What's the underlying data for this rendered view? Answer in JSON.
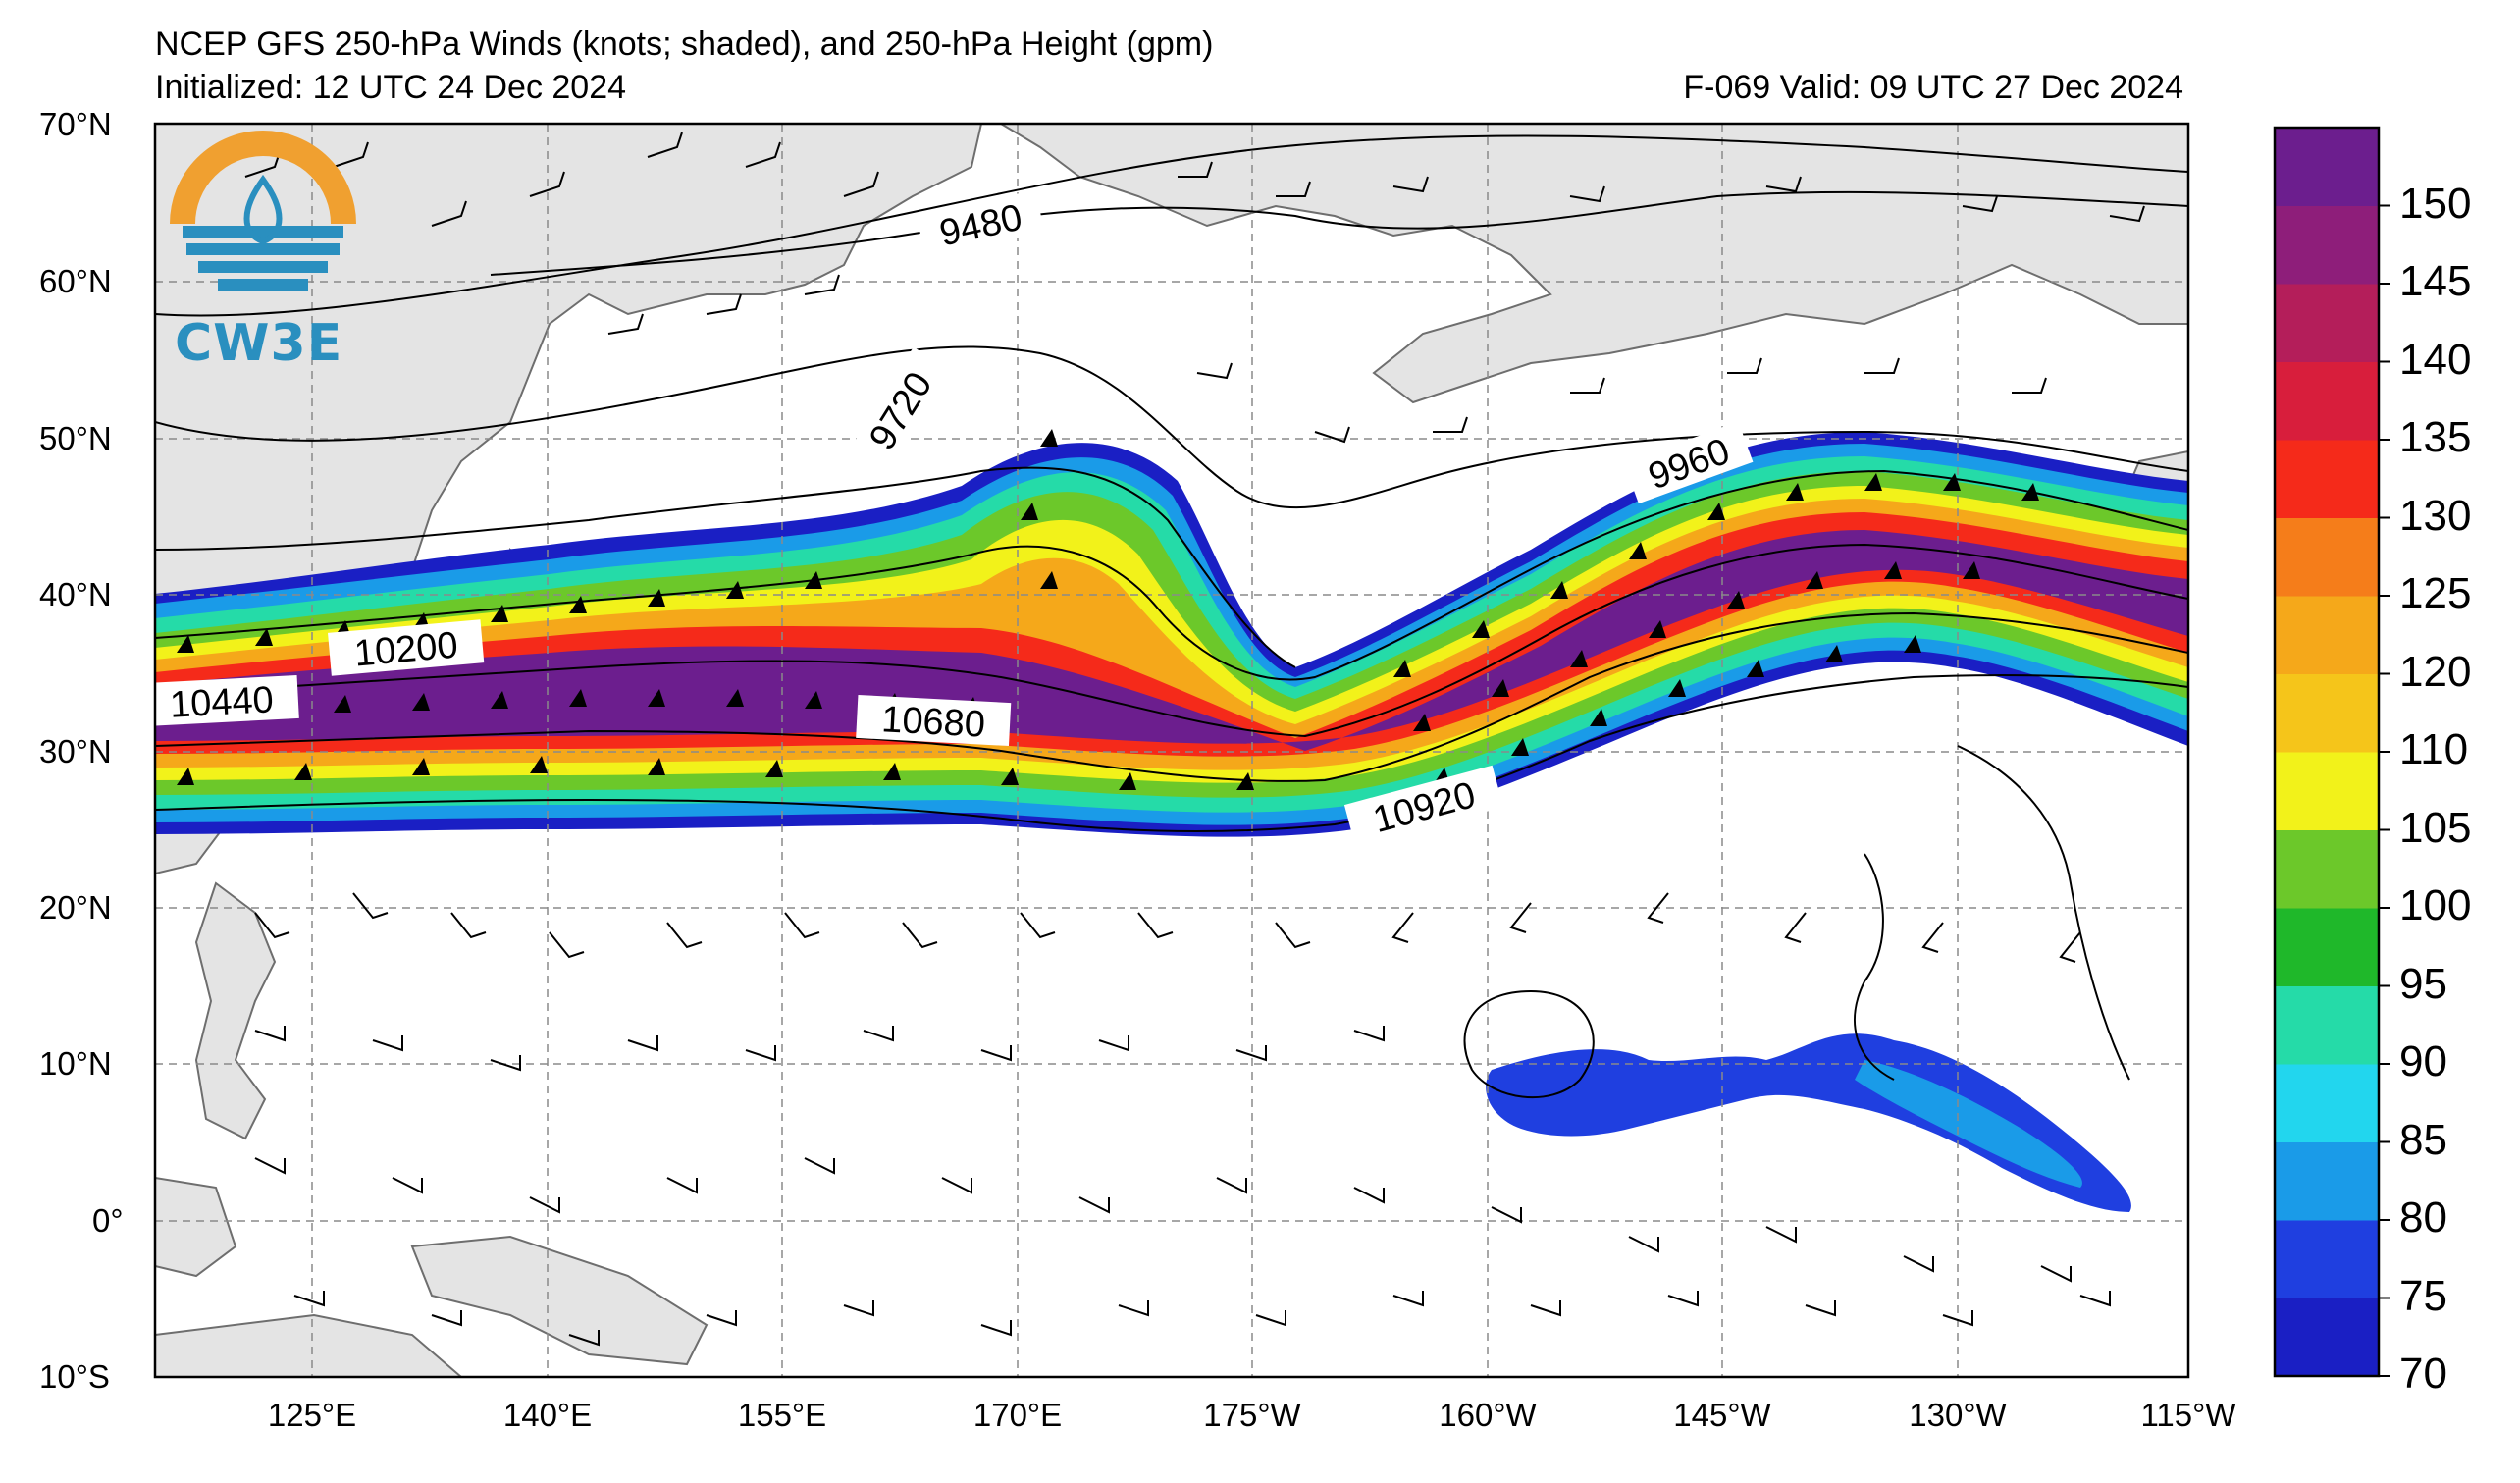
{
  "titles": {
    "line1": "NCEP GFS 250-hPa Winds (knots; shaded), and 250-hPa Height (gpm)",
    "line2": "Initialized: 12 UTC 24 Dec 2024",
    "valid": "F-069  Valid: 09 UTC 27 Dec 2024"
  },
  "logo": {
    "text": "CW3E",
    "icon": "cw3e-logo-icon"
  },
  "axes": {
    "lat_labels": [
      "70°N",
      "60°N",
      "50°N",
      "40°N",
      "30°N",
      "20°N",
      "10°N",
      "0°",
      "10°S"
    ],
    "lon_labels": [
      "125°E",
      "140°E",
      "155°E",
      "170°E",
      "175°W",
      "160°W",
      "145°W",
      "130°W",
      "115°W"
    ]
  },
  "colorbar": {
    "levels": [
      70,
      75,
      80,
      85,
      90,
      95,
      100,
      105,
      110,
      120,
      125,
      130,
      135,
      140,
      145,
      150
    ],
    "tick_labels": [
      "150",
      "145",
      "140",
      "135",
      "130",
      "125",
      "120",
      "110",
      "105",
      "100",
      "95",
      "90",
      "85",
      "80",
      "75",
      "70"
    ],
    "colors": [
      "#1a1fc4",
      "#1f3fe0",
      "#1a9be8",
      "#22d6ee",
      "#25dba8",
      "#1fb82a",
      "#6cc82a",
      "#f2f21a",
      "#f5c51a",
      "#f5a81a",
      "#f57d1a",
      "#f52a1a",
      "#d81e3c",
      "#b41e5a",
      "#8e1e7a",
      "#6c1e8e"
    ]
  },
  "contours": {
    "labels": [
      "9480",
      "9720",
      "9960",
      "10200",
      "10440",
      "10680",
      "10920"
    ]
  },
  "colors": {
    "land": "#e4e4e4",
    "coast": "#6e6e6e",
    "grid": "#8a8a8a",
    "logo_orange": "#f0a030",
    "logo_blue": "#2a8fbf"
  }
}
